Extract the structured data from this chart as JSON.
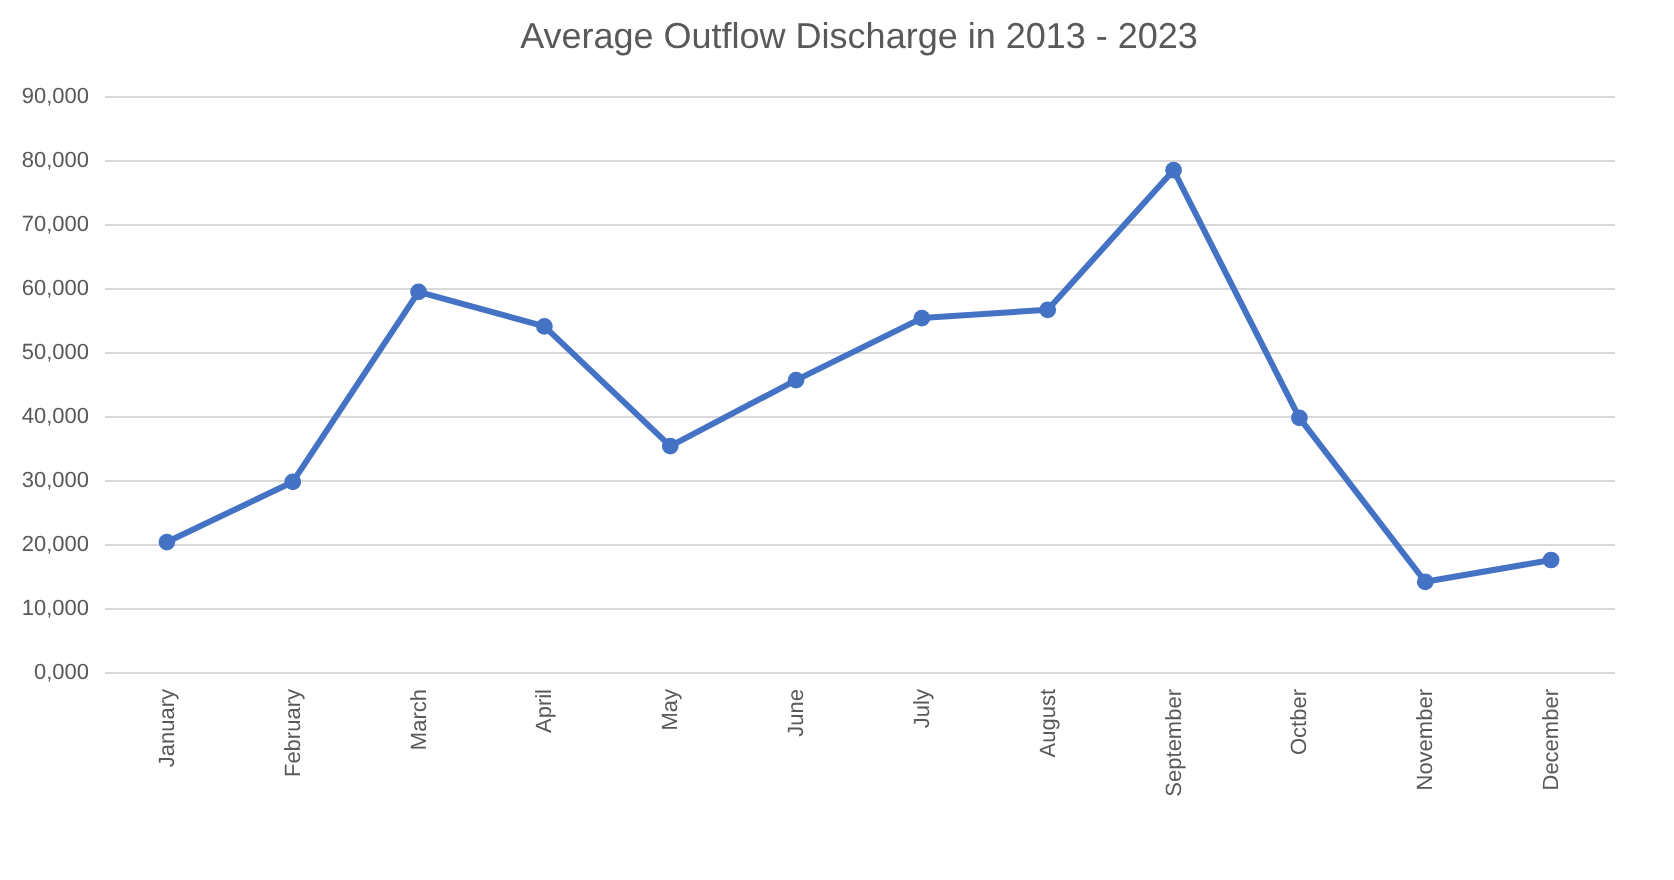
{
  "chart_data": {
    "type": "line",
    "title": "Average Outflow Discharge in 2013 - 2023",
    "categories": [
      "January",
      "February",
      "March",
      "April",
      "May",
      "June",
      "July",
      "August",
      "September",
      "Octber",
      "November",
      "December"
    ],
    "series": [
      {
        "color": "#4472c4",
        "values": [
          20300,
          29700,
          59400,
          54000,
          35300,
          45600,
          55300,
          56600,
          78400,
          39700,
          14100,
          17500
        ]
      }
    ],
    "ylim": [
      0,
      90000
    ],
    "yticks": [
      {
        "value": 0,
        "label": "0,000"
      },
      {
        "value": 10000,
        "label": "10,000"
      },
      {
        "value": 20000,
        "label": "20,000"
      },
      {
        "value": 30000,
        "label": "30,000"
      },
      {
        "value": 40000,
        "label": "40,000"
      },
      {
        "value": 50000,
        "label": "50,000"
      },
      {
        "value": 60000,
        "label": "60,000"
      },
      {
        "value": 70000,
        "label": "70,000"
      },
      {
        "value": 80000,
        "label": "80,000"
      },
      {
        "value": 90000,
        "label": "90,000"
      }
    ],
    "grid": "y",
    "marker": "circle",
    "line_style": "solid",
    "legend": false
  }
}
